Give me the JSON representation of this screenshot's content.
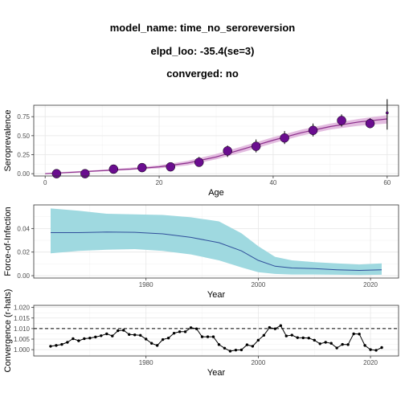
{
  "header": {
    "model_name": "model_name: time_no_seroreversion",
    "elpd": "elpd_loo: -35.4(se=3)",
    "converged": "converged: no"
  },
  "colors": {
    "sero_point": "#6a0d8f",
    "sero_band": "#d9a6d6",
    "sero_line": "#8c2e8c",
    "foi_band": "#9fd9e0",
    "foi_line": "#2f4e9a",
    "rhat_line": "#000000"
  },
  "chart_data": [
    {
      "type": "scatter",
      "xlabel": "Age",
      "ylabel": "Seroprevalence",
      "xlim": [
        -2,
        62
      ],
      "ylim": [
        -0.03,
        0.9
      ],
      "xticks": [
        "0",
        "20",
        "40",
        "60"
      ],
      "yticks": [
        "0.00",
        "0.25",
        "0.50",
        "0.75"
      ],
      "grid": true,
      "points": {
        "age": [
          2,
          7,
          12,
          17,
          22,
          27,
          32,
          37,
          42,
          47,
          52,
          57,
          60
        ],
        "seroprevalence": [
          0.0,
          0.0,
          0.06,
          0.08,
          0.09,
          0.15,
          0.3,
          0.36,
          0.47,
          0.57,
          0.7,
          0.66,
          0.8
        ],
        "size": [
          3,
          3,
          3,
          3,
          3,
          3,
          3,
          3,
          3,
          3,
          3,
          3,
          1
        ],
        "lower": [
          0.0,
          0.0,
          0.02,
          0.03,
          0.05,
          0.1,
          0.22,
          0.28,
          0.39,
          0.49,
          0.62,
          0.6,
          0.58
        ],
        "upper": [
          0.04,
          0.03,
          0.1,
          0.13,
          0.14,
          0.22,
          0.37,
          0.45,
          0.56,
          0.66,
          0.78,
          0.73,
          0.98
        ]
      },
      "fit": {
        "age": [
          0,
          5,
          10,
          15,
          20,
          25,
          30,
          35,
          40,
          45,
          50,
          55,
          60
        ],
        "median": [
          0.0,
          0.02,
          0.04,
          0.06,
          0.09,
          0.14,
          0.22,
          0.33,
          0.44,
          0.54,
          0.62,
          0.68,
          0.72
        ],
        "lower": [
          0.0,
          0.01,
          0.03,
          0.05,
          0.07,
          0.11,
          0.19,
          0.29,
          0.4,
          0.5,
          0.58,
          0.63,
          0.66
        ],
        "upper": [
          0.01,
          0.03,
          0.05,
          0.08,
          0.11,
          0.17,
          0.26,
          0.37,
          0.48,
          0.58,
          0.66,
          0.72,
          0.77
        ]
      }
    },
    {
      "type": "area",
      "xlabel": "Year",
      "ylabel": "Force-of-Infection",
      "xlim": [
        1960,
        2025
      ],
      "ylim": [
        -0.002,
        0.06
      ],
      "xticks": [
        "1980",
        "2000",
        "2020"
      ],
      "yticks": [
        "0.00",
        "0.02",
        "0.04"
      ],
      "grid": true,
      "x": [
        1963,
        1968,
        1973,
        1978,
        1983,
        1988,
        1993,
        1997,
        2000,
        2003,
        2006,
        2010,
        2014,
        2018,
        2022
      ],
      "median": [
        0.0365,
        0.0365,
        0.037,
        0.0368,
        0.0355,
        0.0325,
        0.028,
        0.021,
        0.013,
        0.008,
        0.0065,
        0.006,
        0.005,
        0.0045,
        0.005
      ],
      "lower": [
        0.019,
        0.021,
        0.022,
        0.0225,
        0.021,
        0.018,
        0.013,
        0.007,
        0.003,
        0.0015,
        0.001,
        0.001,
        0.0008,
        0.0005,
        0.0008
      ],
      "upper": [
        0.057,
        0.055,
        0.0525,
        0.052,
        0.0515,
        0.0495,
        0.046,
        0.036,
        0.025,
        0.016,
        0.013,
        0.0115,
        0.0105,
        0.0095,
        0.0105
      ]
    },
    {
      "type": "line",
      "xlabel": "Year",
      "ylabel": "Convergence (r-hats)",
      "xlim": [
        1960,
        2025
      ],
      "ylim": [
        0.997,
        1.021
      ],
      "xticks": [
        "1980",
        "2000",
        "2020"
      ],
      "yticks": [
        "1.000",
        "1.005",
        "1.010",
        "1.015",
        "1.020"
      ],
      "grid": true,
      "threshold": 1.01,
      "x": [
        1963,
        1964,
        1965,
        1966,
        1967,
        1968,
        1969,
        1970,
        1971,
        1972,
        1973,
        1974,
        1975,
        1976,
        1977,
        1978,
        1979,
        1980,
        1981,
        1982,
        1983,
        1984,
        1985,
        1986,
        1987,
        1988,
        1989,
        1990,
        1991,
        1992,
        1993,
        1994,
        1995,
        1996,
        1997,
        1998,
        1999,
        2000,
        2001,
        2002,
        2003,
        2004,
        2005,
        2006,
        2007,
        2008,
        2009,
        2010,
        2011,
        2012,
        2013,
        2014,
        2015,
        2016,
        2017,
        2018,
        2019,
        2020,
        2021,
        2022
      ],
      "y": [
        1.0016,
        1.002,
        1.0025,
        1.0035,
        1.0052,
        1.0042,
        1.0052,
        1.0055,
        1.006,
        1.0066,
        1.0075,
        1.0065,
        1.009,
        1.0092,
        1.0072,
        1.007,
        1.0068,
        1.005,
        1.003,
        1.002,
        1.0048,
        1.0055,
        1.0078,
        1.0085,
        1.0085,
        1.0104,
        1.0099,
        1.0061,
        1.0061,
        1.0061,
        1.0024,
        1.0007,
        0.9993,
        0.9998,
        0.9999,
        1.0023,
        1.0016,
        1.0045,
        1.0068,
        1.0105,
        1.0099,
        1.0114,
        1.0065,
        1.0069,
        1.0057,
        1.0056,
        1.0055,
        1.0045,
        1.0028,
        1.0035,
        1.003,
        1.0008,
        1.0025,
        1.0024,
        1.0075,
        1.0074,
        1.002,
        1.0,
        0.9997,
        1.001
      ]
    }
  ]
}
